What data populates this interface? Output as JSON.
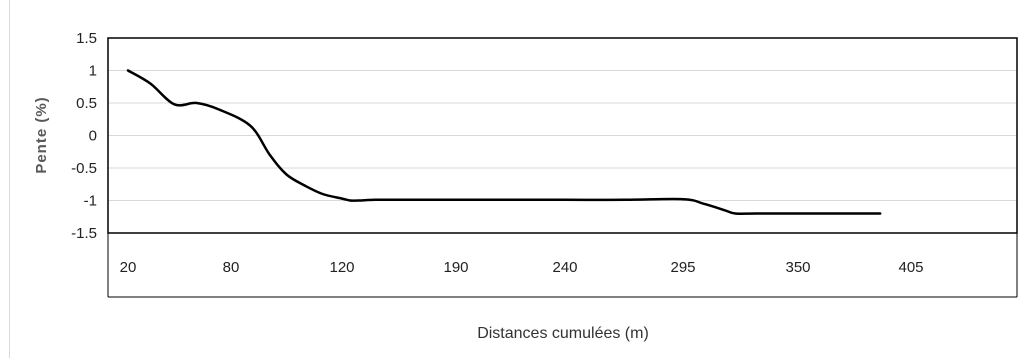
{
  "chart_data": {
    "type": "line",
    "title": "",
    "xlabel": "Distances cumulées (m)",
    "ylabel": "Pente (%)",
    "ylim": [
      -1.5,
      1.5
    ],
    "yticks": [
      "1.5",
      "1",
      "0.5",
      "0",
      "-0.5",
      "-1",
      "-1.5"
    ],
    "ytick_values": [
      1.5,
      1,
      0.5,
      0,
      -0.5,
      -1,
      -1.5
    ],
    "categories": [
      "20",
      "80",
      "120",
      "190",
      "240",
      "295",
      "350",
      "405"
    ],
    "grid": true,
    "series": [
      {
        "color": "#000000",
        "x": [
          20,
          33,
          47,
          60,
          73,
          87,
          94,
          100,
          107,
          113,
          120,
          125,
          130,
          140,
          155,
          175,
          190,
          215,
          240,
          268,
          295,
          305,
          315,
          320,
          330,
          350,
          375,
          390
        ],
        "y": [
          1.0,
          0.8,
          0.48,
          0.5,
          0.4,
          0.15,
          -0.3,
          -0.6,
          -0.78,
          -0.9,
          -0.97,
          -1.0,
          -1.0,
          -0.99,
          -0.99,
          -0.99,
          -0.99,
          -0.99,
          -0.99,
          -0.99,
          -0.98,
          -1.05,
          -1.15,
          -1.2,
          -1.2,
          -1.2,
          -1.2,
          -1.2
        ]
      }
    ]
  }
}
